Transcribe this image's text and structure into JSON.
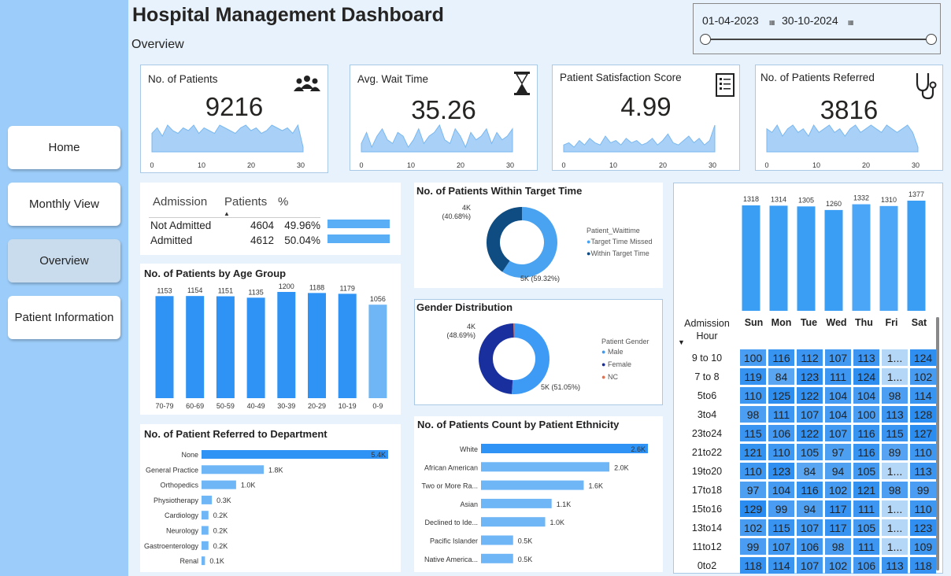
{
  "nav": {
    "home": "Home",
    "monthly": "Monthly View",
    "overview": "Overview",
    "patient_info": "Patient Information"
  },
  "header": {
    "title": "Hospital Management Dashboard",
    "subtitle": "Overview",
    "date_from": "01-04-2023",
    "date_to": "30-10-2024"
  },
  "kpis": {
    "patients": {
      "title": "No. of Patients",
      "value": "9216",
      "icon": "people-icon"
    },
    "wait": {
      "title": "Avg. Wait Time",
      "value": "35.26",
      "icon": "hourglass-icon"
    },
    "satisfaction": {
      "title": "Patient Satisfaction Score",
      "value": "4.99",
      "icon": "checklist-icon"
    },
    "referred": {
      "title": "No. of Patients Referred",
      "value": "3816",
      "icon": "stethoscope-icon"
    },
    "spark_ticks": [
      "0",
      "10",
      "20",
      "30"
    ]
  },
  "admission": {
    "headers": [
      "Admission",
      "Patients",
      "%"
    ],
    "rows": [
      {
        "label": "Not Admitted",
        "patients": "4604",
        "pct": "49.96%",
        "share": 49.96
      },
      {
        "label": "Admitted",
        "patients": "4612",
        "pct": "50.04%",
        "share": 50.04
      }
    ]
  },
  "age_chart": {
    "title": "No. of Patients by Age Group",
    "categories": [
      "70-79",
      "60-69",
      "50-59",
      "40-49",
      "30-39",
      "20-29",
      "10-19",
      "0-9"
    ],
    "values": [
      1153,
      1154,
      1151,
      1135,
      1200,
      1188,
      1179,
      1056
    ]
  },
  "target_chart": {
    "title": "No. of Patients Within Target Time",
    "legend_title": "Patient_Waittime",
    "items": [
      {
        "name": "Target Time Missed",
        "label": "5K (59.32%)",
        "pct": 59.32,
        "color": "#4aa3f0"
      },
      {
        "name": "Within Target Time",
        "label": "4K (40.68%)",
        "pct": 40.68,
        "color": "#0f4c81"
      }
    ]
  },
  "gender_chart": {
    "title": "Gender Distribution",
    "legend_title": "Patient Gender",
    "items": [
      {
        "name": "Male",
        "label": "5K (51.05%)",
        "pct": 51.05,
        "color": "#3d9bf5"
      },
      {
        "name": "Female",
        "label": "4K (48.69%)",
        "pct": 48.69,
        "color": "#1a2f9e"
      },
      {
        "name": "NC",
        "label": "",
        "pct": 0.26,
        "color": "#e8704a"
      }
    ]
  },
  "dept_chart": {
    "title": "No. of Patient Referred to Department",
    "categories": [
      "None",
      "General Practice",
      "Orthopedics",
      "Physiotherapy",
      "Cardiology",
      "Neurology",
      "Gastroenterology",
      "Renal"
    ],
    "values": [
      5.4,
      1.8,
      1.0,
      0.3,
      0.2,
      0.2,
      0.2,
      0.1
    ],
    "labels": [
      "5.4K",
      "1.8K",
      "1.0K",
      "0.3K",
      "0.2K",
      "0.2K",
      "0.2K",
      "0.1K"
    ]
  },
  "ethnicity_chart": {
    "title": "No. of Patients Count by Patient Ethnicity",
    "categories": [
      "White",
      "African American",
      "Two or More Ra...",
      "Asian",
      "Declined to Ide...",
      "Pacific Islander",
      "Native America..."
    ],
    "values": [
      2.6,
      2.0,
      1.6,
      1.1,
      1.0,
      0.5,
      0.5
    ],
    "labels": [
      "2.6K",
      "2.0K",
      "1.6K",
      "1.1K",
      "1.0K",
      "0.5K",
      "0.5K"
    ]
  },
  "weekday_chart": {
    "categories": [
      "Sun",
      "Mon",
      "Tue",
      "Wed",
      "Thu",
      "Fri",
      "Sat"
    ],
    "values": [
      1318,
      1314,
      1305,
      1260,
      1332,
      1310,
      1377
    ]
  },
  "heatmap": {
    "header_line1": "Admission",
    "header_line2": "Hour",
    "rows": [
      {
        "hour": "9 to 10",
        "vals": [
          "100",
          "116",
          "112",
          "107",
          "113",
          "1...",
          "124"
        ]
      },
      {
        "hour": "7 to 8",
        "vals": [
          "119",
          "84",
          "123",
          "111",
          "124",
          "1...",
          "102"
        ]
      },
      {
        "hour": "5to6",
        "vals": [
          "110",
          "125",
          "122",
          "104",
          "104",
          "98",
          "114"
        ]
      },
      {
        "hour": "3to4",
        "vals": [
          "98",
          "111",
          "107",
          "104",
          "100",
          "113",
          "128"
        ]
      },
      {
        "hour": "23to24",
        "vals": [
          "115",
          "106",
          "122",
          "107",
          "116",
          "115",
          "127"
        ]
      },
      {
        "hour": "21to22",
        "vals": [
          "121",
          "110",
          "105",
          "97",
          "116",
          "89",
          "110"
        ]
      },
      {
        "hour": "19to20",
        "vals": [
          "110",
          "123",
          "84",
          "94",
          "105",
          "1...",
          "113"
        ]
      },
      {
        "hour": "17to18",
        "vals": [
          "97",
          "104",
          "116",
          "102",
          "121",
          "98",
          "99"
        ]
      },
      {
        "hour": "15to16",
        "vals": [
          "129",
          "99",
          "94",
          "117",
          "111",
          "1...",
          "110"
        ]
      },
      {
        "hour": "13to14",
        "vals": [
          "102",
          "115",
          "107",
          "117",
          "105",
          "1...",
          "123"
        ]
      },
      {
        "hour": "11to12",
        "vals": [
          "99",
          "107",
          "106",
          "98",
          "111",
          "1...",
          "109"
        ]
      },
      {
        "hour": "0to2",
        "vals": [
          "118",
          "114",
          "107",
          "102",
          "106",
          "113",
          "118"
        ]
      }
    ]
  },
  "colors": {
    "bar": "#2e93f5",
    "bar_light": "#6fb6f7",
    "spark": "#a9d1f7",
    "sidebar": "#9ccdfa"
  }
}
